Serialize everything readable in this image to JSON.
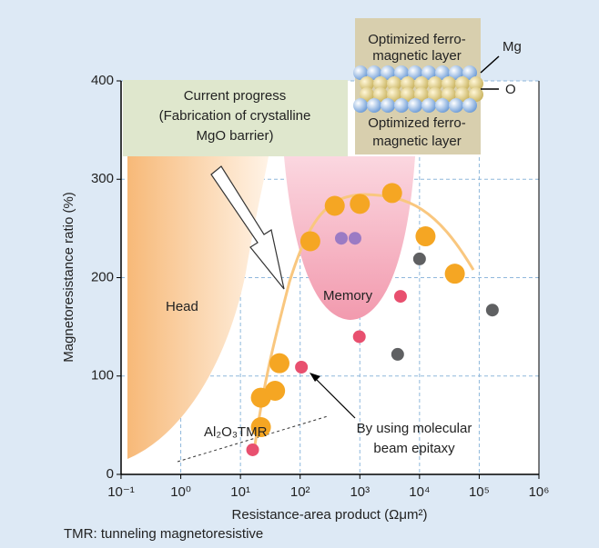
{
  "chart_data": {
    "type": "scatter",
    "xlabel": "Resistance-area product (Ωμm²)",
    "ylabel": "Magnetoresistance ratio (%)",
    "xscale": "log",
    "xlim": [
      0.1,
      1000000
    ],
    "ylim": [
      0,
      400
    ],
    "xticks": [
      {
        "value": 0.1,
        "label": "10⁻¹"
      },
      {
        "value": 1,
        "label": "10⁰"
      },
      {
        "value": 10,
        "label": "10¹"
      },
      {
        "value": 100,
        "label": "10²"
      },
      {
        "value": 1000,
        "label": "10³"
      },
      {
        "value": 10000,
        "label": "10⁴"
      },
      {
        "value": 100000,
        "label": "10⁵"
      },
      {
        "value": 1000000,
        "label": "10⁶"
      }
    ],
    "yticks": [
      0,
      100,
      200,
      300,
      400
    ],
    "grid": true,
    "series": [
      {
        "color": "#f5a623",
        "marker_size": 11,
        "x": [
          22,
          22,
          38,
          45,
          148,
          380,
          1000,
          3470,
          12600,
          39000
        ],
        "values": [
          48,
          78,
          85,
          113,
          237,
          273,
          275,
          286,
          242,
          204
        ]
      },
      {
        "color": "#9b7bc4",
        "marker_size": 7,
        "x": [
          490,
          830
        ],
        "values": [
          240,
          240
        ]
      },
      {
        "color": "#5f6062",
        "marker_size": 7,
        "x": [
          10000,
          4300,
          166000
        ],
        "values": [
          219,
          122,
          167
        ]
      },
      {
        "color": "#e8506f",
        "marker_size": 7,
        "x": [
          16,
          105,
          980,
          4800
        ],
        "values": [
          25,
          109,
          140,
          181
        ]
      }
    ],
    "annotations": [
      "Current progress",
      "(Fabrication of crystalline",
      "MgO barrier)",
      "Head",
      "Memory",
      "Al₂O₃TMR",
      "By using molecular",
      "beam epitaxy",
      "Optimized ferro-",
      "magnetic layer",
      "Optimized ferro-",
      "magnetic layer",
      "Mg",
      "O"
    ],
    "footnote": "TMR: tunneling magnetoresistive"
  }
}
